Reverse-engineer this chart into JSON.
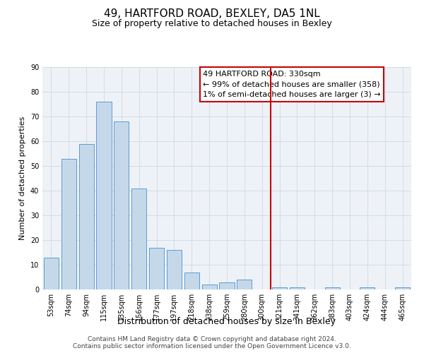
{
  "title": "49, HARTFORD ROAD, BEXLEY, DA5 1NL",
  "subtitle": "Size of property relative to detached houses in Bexley",
  "xlabel": "Distribution of detached houses by size in Bexley",
  "ylabel": "Number of detached properties",
  "categories": [
    "53sqm",
    "74sqm",
    "94sqm",
    "115sqm",
    "135sqm",
    "156sqm",
    "177sqm",
    "197sqm",
    "218sqm",
    "238sqm",
    "259sqm",
    "280sqm",
    "300sqm",
    "321sqm",
    "341sqm",
    "362sqm",
    "383sqm",
    "403sqm",
    "424sqm",
    "444sqm",
    "465sqm"
  ],
  "values": [
    13,
    53,
    59,
    76,
    68,
    41,
    17,
    16,
    7,
    2,
    3,
    4,
    0,
    1,
    1,
    0,
    1,
    0,
    1,
    0,
    1
  ],
  "bar_color": "#c5d8ea",
  "bar_edge_color": "#5b9bd5",
  "vline_color": "#cc0000",
  "vline_x_index": 12,
  "annotation_text": "49 HARTFORD ROAD: 330sqm\n← 99% of detached houses are smaller (358)\n1% of semi-detached houses are larger (3) →",
  "annotation_box_color": "#cc0000",
  "ylim": [
    0,
    90
  ],
  "yticks": [
    0,
    10,
    20,
    30,
    40,
    50,
    60,
    70,
    80,
    90
  ],
  "grid_color": "#d0dce8",
  "background_color": "#eef2f7",
  "footer1": "Contains HM Land Registry data © Crown copyright and database right 2024.",
  "footer2": "Contains public sector information licensed under the Open Government Licence v3.0.",
  "title_fontsize": 11,
  "subtitle_fontsize": 9,
  "xlabel_fontsize": 9,
  "ylabel_fontsize": 8,
  "tick_fontsize": 7,
  "annotation_fontsize": 8,
  "footer_fontsize": 6.5
}
